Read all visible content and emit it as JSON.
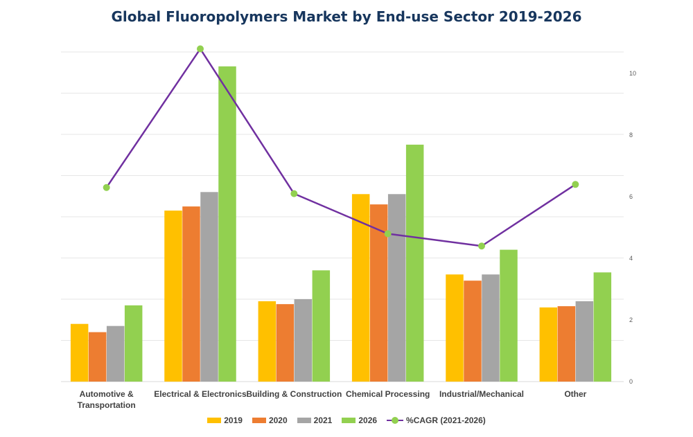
{
  "chart_data": {
    "type": "bar",
    "title": "Global Fluoropolymers Market by End-use Sector 2019-2026",
    "categories": [
      "Automotive & Transportation",
      "Electrical & Electronics",
      "Building & Construction",
      "Chemical Processing",
      "Industrial/Mechanical",
      "Other"
    ],
    "category_lines": [
      [
        "Automotive &",
        "Transportation"
      ],
      [
        "Electrical & Electronics"
      ],
      [
        "Building & Construction"
      ],
      [
        "Chemical Processing"
      ],
      [
        "Industrial/Mechanical"
      ],
      [
        "Other"
      ]
    ],
    "series": [
      {
        "name": "2019",
        "color": "#ffc000",
        "values": [
          1.4,
          4.15,
          1.95,
          4.55,
          2.6,
          1.8
        ]
      },
      {
        "name": "2020",
        "color": "#ed7d31",
        "values": [
          1.2,
          4.25,
          1.88,
          4.3,
          2.45,
          1.83
        ]
      },
      {
        "name": "2021",
        "color": "#a5a5a5",
        "values": [
          1.35,
          4.6,
          2.0,
          4.55,
          2.6,
          1.95
        ]
      },
      {
        "name": "2026",
        "color": "#92d050",
        "values": [
          1.85,
          7.65,
          2.7,
          5.75,
          3.2,
          2.65
        ]
      }
    ],
    "primary_ylim": [
      0,
      8
    ],
    "line_series": {
      "name": "%CAGR (2021-2026)",
      "line_color": "#7030a0",
      "marker_color": "#92d050",
      "values": [
        6.3,
        10.8,
        6.1,
        4.8,
        4.4,
        6.4
      ]
    },
    "secondary_axis": {
      "ticks": [
        0,
        2,
        4,
        6,
        8,
        10
      ],
      "tick_labels": [
        "0",
        "2",
        "4",
        "6",
        "8",
        "10"
      ],
      "ylim": [
        0,
        10.7
      ]
    },
    "gridlines": true,
    "legend_position": "bottom"
  }
}
